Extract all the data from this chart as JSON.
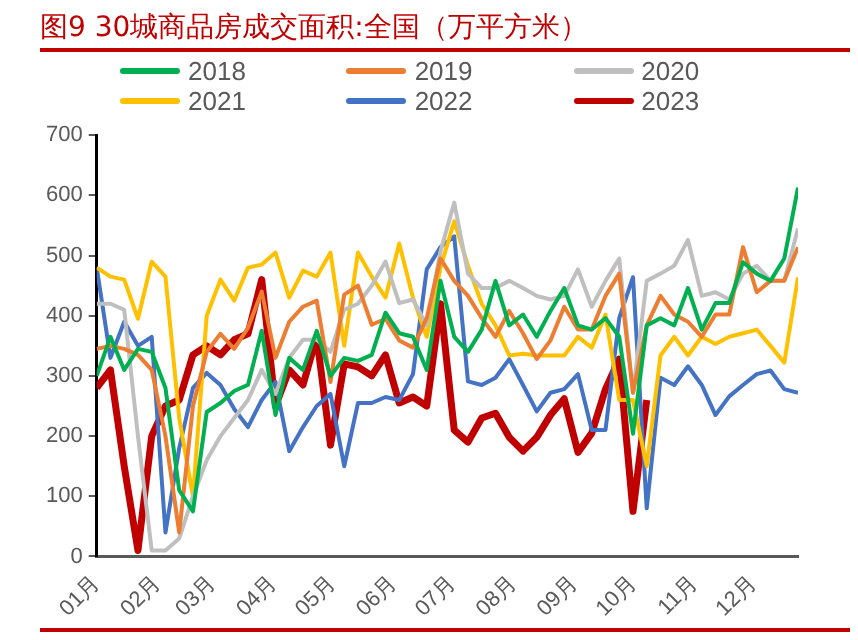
{
  "chart_data": {
    "type": "line",
    "title": "图9 30城商品房成交面积:全国（万平方米）",
    "legend": "top",
    "x": [
      "--01-01",
      "--01-08",
      "--01-15",
      "--01-22",
      "--01-29",
      "--02-05",
      "--02-12",
      "--02-19",
      "--02-26",
      "--03-05",
      "--03-12",
      "--03-19",
      "--03-26",
      "--04-02",
      "--04-09",
      "--04-16",
      "--04-23",
      "--04-30",
      "--05-07",
      "--05-14",
      "--05-21",
      "--05-28",
      "--06-04",
      "--06-11",
      "--06-18",
      "--06-25",
      "--07-02",
      "--07-09",
      "--07-16",
      "--07-23",
      "--07-30",
      "--08-06",
      "--08-13",
      "--08-20",
      "--08-27",
      "--09-03",
      "--09-10",
      "--09-17",
      "--09-24",
      "--10-01",
      "--10-08",
      "--10-15",
      "--10-22",
      "--10-29",
      "--11-05",
      "--11-12",
      "--11-19",
      "--11-26",
      "--12-03",
      "--12-10",
      "--12-17",
      "--12-24"
    ],
    "xlim": [
      "--01-01",
      "--12-24"
    ],
    "xticks": [
      {
        "value": "--01-01",
        "label": "01月"
      },
      {
        "value": "--02-01",
        "label": "02月"
      },
      {
        "value": "--03-01",
        "label": "03月"
      },
      {
        "value": "--04-01",
        "label": "04月"
      },
      {
        "value": "--05-01",
        "label": "05月"
      },
      {
        "value": "--06-01",
        "label": "06月"
      },
      {
        "value": "--07-01",
        "label": "07月"
      },
      {
        "value": "--08-01",
        "label": "08月"
      },
      {
        "value": "--09-01",
        "label": "09月"
      },
      {
        "value": "--10-01",
        "label": "10月"
      },
      {
        "value": "--11-01",
        "label": "11月"
      },
      {
        "value": "--12-01",
        "label": "12月"
      }
    ],
    "ylim": [
      0,
      700
    ],
    "yticks": [
      0,
      100,
      200,
      300,
      400,
      500,
      600,
      700
    ],
    "series": [
      {
        "name": "2018",
        "color": "#00b050",
        "values": [
          300,
          365,
          310,
          345,
          340,
          280,
          110,
          75,
          240,
          255,
          275,
          285,
          375,
          235,
          330,
          310,
          375,
          300,
          330,
          325,
          335,
          405,
          371,
          365,
          310,
          458,
          365,
          340,
          377,
          458,
          384,
          402,
          365,
          408,
          446,
          384,
          377,
          396,
          365,
          204,
          384,
          396,
          384,
          446,
          377,
          421,
          421,
          489,
          470,
          458,
          495,
          613
        ]
      },
      {
        "name": "2019",
        "color": "#ed7d31",
        "values": [
          345,
          350,
          345,
          335,
          310,
          200,
          40,
          250,
          340,
          370,
          345,
          380,
          440,
          330,
          390,
          415,
          425,
          290,
          435,
          450,
          385,
          395,
          359,
          347,
          396,
          495,
          458,
          433,
          396,
          365,
          408,
          371,
          328,
          359,
          415,
          377,
          377,
          433,
          470,
          272,
          384,
          433,
          402,
          390,
          365,
          402,
          402,
          514,
          439,
          458,
          458,
          514
        ]
      },
      {
        "name": "2020",
        "color": "#bfbfbf",
        "values": [
          420,
          420,
          410,
          200,
          10,
          10,
          30,
          100,
          160,
          200,
          230,
          260,
          310,
          270,
          330,
          360,
          360,
          340,
          410,
          420,
          450,
          490,
          421,
          427,
          384,
          507,
          588,
          470,
          446,
          446,
          458,
          446,
          433,
          427,
          433,
          477,
          415,
          458,
          495,
          272,
          458,
          470,
          483,
          526,
          433,
          439,
          427,
          470,
          483,
          458,
          458,
          545
        ]
      },
      {
        "name": "2021",
        "color": "#ffc000",
        "values": [
          480,
          465,
          460,
          395,
          490,
          465,
          230,
          100,
          400,
          460,
          425,
          480,
          485,
          505,
          430,
          475,
          465,
          505,
          350,
          505,
          465,
          430,
          520,
          430,
          365,
          480,
          557,
          483,
          420,
          384,
          334,
          337,
          334,
          334,
          334,
          365,
          347,
          402,
          260,
          260,
          150,
          334,
          365,
          334,
          365,
          353,
          365,
          371,
          377,
          350,
          322,
          464
        ]
      },
      {
        "name": "2022",
        "color": "#4472c4",
        "values": [
          480,
          330,
          390,
          350,
          365,
          40,
          180,
          280,
          305,
          285,
          245,
          215,
          260,
          290,
          175,
          215,
          250,
          270,
          150,
          255,
          255,
          265,
          260,
          303,
          477,
          514,
          532,
          291,
          285,
          297,
          328,
          285,
          241,
          272,
          278,
          303,
          210,
          210,
          396,
          464,
          80,
          297,
          285,
          316,
          285,
          235,
          266,
          285,
          303,
          309,
          278,
          272
        ]
      },
      {
        "name": "2023",
        "color": "#c00000",
        "values": [
          280,
          310,
          150,
          10,
          200,
          250,
          260,
          335,
          350,
          335,
          360,
          370,
          460,
          250,
          310,
          285,
          365,
          185,
          320,
          315,
          300,
          335,
          255,
          265,
          250,
          420,
          210,
          190,
          230,
          238,
          198,
          175,
          198,
          235,
          262,
          173,
          205,
          278,
          328,
          75,
          260,
          null,
          null,
          null,
          null,
          null,
          null,
          null,
          null,
          null,
          null,
          null
        ]
      }
    ]
  }
}
